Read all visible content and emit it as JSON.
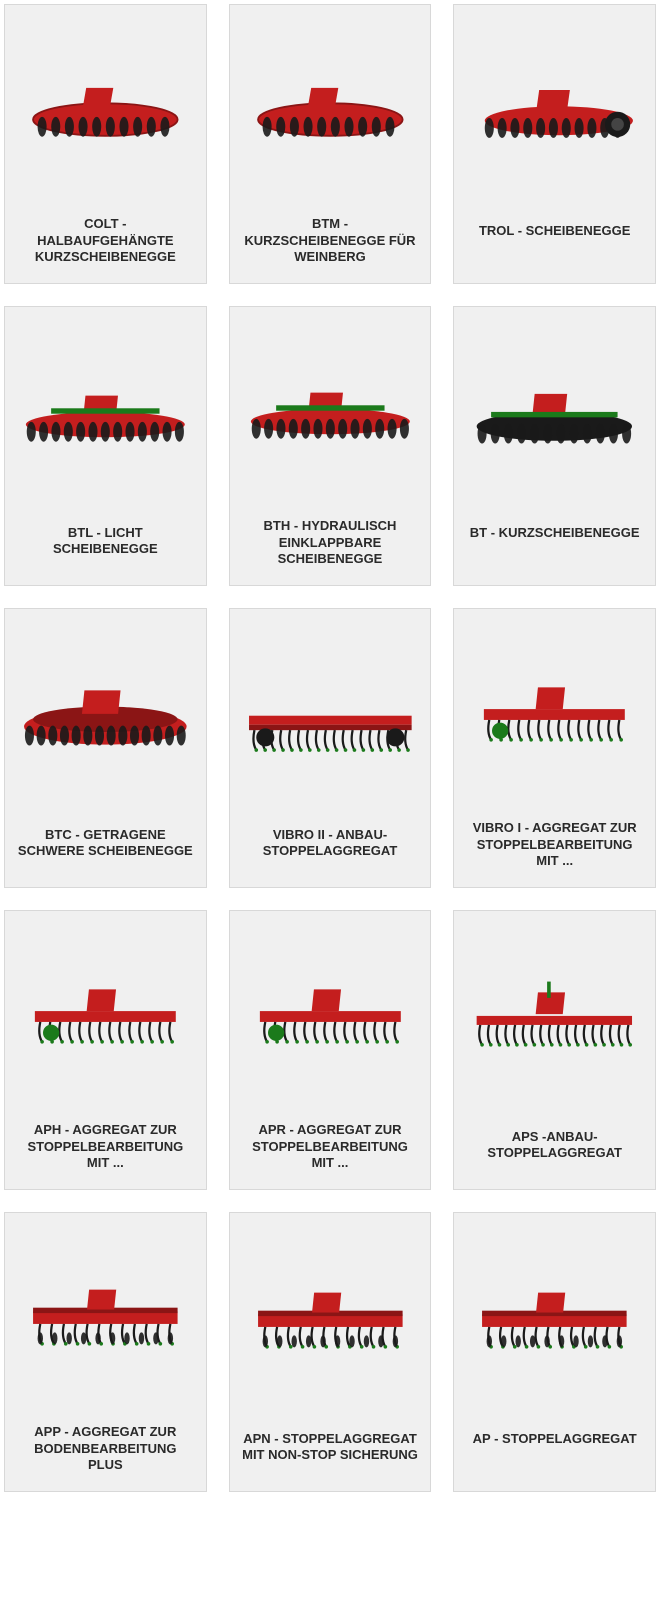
{
  "colors": {
    "card_bg": "#f0f0f0",
    "card_border": "#d8d8d8",
    "title_color": "#2a2a2a",
    "machine_red": "#c41e1e",
    "machine_dark_red": "#8b1515",
    "machine_green": "#1b7a1b",
    "machine_dark": "#1a1a1a",
    "machine_grey": "#444444"
  },
  "products": [
    {
      "title": "COLT - HALBAUFGEHÄNGTE KURZSCHEIBENEGGE",
      "variant": "disc-harrow-compact"
    },
    {
      "title": "BTM - KURZSCHEIBENEGGE FÜR WEINBERG",
      "variant": "disc-harrow-compact"
    },
    {
      "title": "TROL - SCHEIBENEGGE",
      "variant": "disc-harrow-wheel"
    },
    {
      "title": "BTL - LICHT SCHEIBENEGGE",
      "variant": "disc-harrow-wide"
    },
    {
      "title": "BTH - HYDRAULISCH EINKLAPPBARE SCHEIBENEGGE",
      "variant": "disc-harrow-wide"
    },
    {
      "title": "BT - KURZSCHEIBENEGGE",
      "variant": "disc-harrow-dark"
    },
    {
      "title": "BTC - GETRAGENE SCHWERE SCHEIBENEGGE",
      "variant": "disc-harrow-heavy"
    },
    {
      "title": "VIBRO II - ANBAU-STOPPELAGGREGAT",
      "variant": "stubble-wide"
    },
    {
      "title": "VIBRO I - AGGREGAT ZUR STOPPELBEARBEITUNG MIT ...",
      "variant": "stubble-tines"
    },
    {
      "title": "APH - AGGREGAT ZUR STOPPELBEARBEITUNG MIT ...",
      "variant": "stubble-tines"
    },
    {
      "title": "APR - AGGREGAT ZUR STOPPELBEARBEITUNG MIT ...",
      "variant": "stubble-tines"
    },
    {
      "title": "APS -ANBAU-STOPPELAGGREGAT",
      "variant": "stubble-tines-wide"
    },
    {
      "title": "APP - AGGREGAT ZUR BODENBEARBEITUNG PLUS",
      "variant": "cultivator"
    },
    {
      "title": "APN - STOPPELAGGREGAT MIT NON-STOP SICHERUNG",
      "variant": "cultivator"
    },
    {
      "title": "AP - STOPPELAGGREGAT",
      "variant": "cultivator"
    }
  ]
}
